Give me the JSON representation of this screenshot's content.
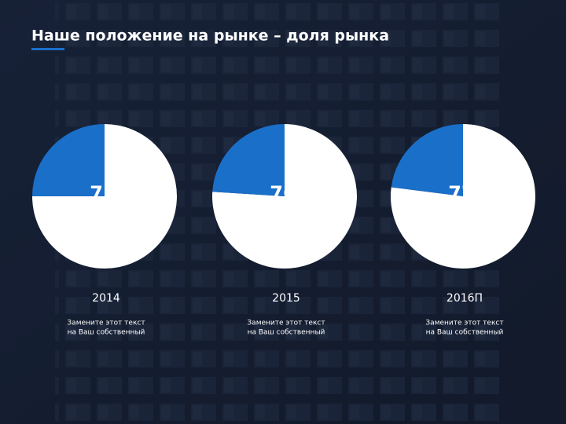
{
  "title": "Наше положение на рынке – доля рынка",
  "chart_data": [
    {
      "type": "pie",
      "label": "2014",
      "caption": [
        "Замените этот текст",
        "на Ваш собственный"
      ],
      "values": [
        75,
        25
      ],
      "colors": [
        "#ffffff",
        "#1a6fc9"
      ]
    },
    {
      "type": "pie",
      "label": "2015",
      "caption": [
        "Замените этот текст",
        "на Ваш собственный"
      ],
      "values": [
        76,
        24
      ],
      "colors": [
        "#ffffff",
        "#1a6fc9"
      ]
    },
    {
      "type": "pie",
      "label": "2016П",
      "caption": [
        "Замените этот текст",
        "на Ваш собственный"
      ],
      "values": [
        77,
        23
      ],
      "colors": [
        "#ffffff",
        "#1a6fc9"
      ]
    }
  ]
}
